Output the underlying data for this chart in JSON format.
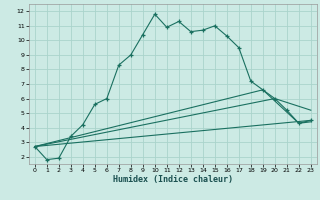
{
  "xlabel": "Humidex (Indice chaleur)",
  "bg_color": "#cceae4",
  "grid_color": "#aad4cc",
  "line_color": "#1a7060",
  "xlim": [
    -0.5,
    23.5
  ],
  "ylim": [
    1.5,
    12.5
  ],
  "xticks": [
    0,
    1,
    2,
    3,
    4,
    5,
    6,
    7,
    8,
    9,
    10,
    11,
    12,
    13,
    14,
    15,
    16,
    17,
    18,
    19,
    20,
    21,
    22,
    23
  ],
  "yticks": [
    2,
    3,
    4,
    5,
    6,
    7,
    8,
    9,
    10,
    11,
    12
  ],
  "main_x": [
    0,
    1,
    2,
    3,
    4,
    5,
    6,
    7,
    8,
    9,
    10,
    11,
    12,
    13,
    14,
    15,
    16,
    17,
    18,
    19,
    20,
    21,
    22,
    23
  ],
  "main_y": [
    2.7,
    1.8,
    1.9,
    3.4,
    4.2,
    5.6,
    6.0,
    8.3,
    9.0,
    10.4,
    11.8,
    10.9,
    11.3,
    10.6,
    10.7,
    11.0,
    10.3,
    9.5,
    7.2,
    6.6,
    6.0,
    5.2,
    4.3,
    4.5
  ],
  "line1_x": [
    0,
    23
  ],
  "line1_y": [
    2.7,
    4.5
  ],
  "line2_x": [
    0,
    20,
    23
  ],
  "line2_y": [
    2.7,
    6.0,
    5.2
  ],
  "line3_x": [
    0,
    19,
    22,
    23
  ],
  "line3_y": [
    2.7,
    6.6,
    4.3,
    4.4
  ]
}
